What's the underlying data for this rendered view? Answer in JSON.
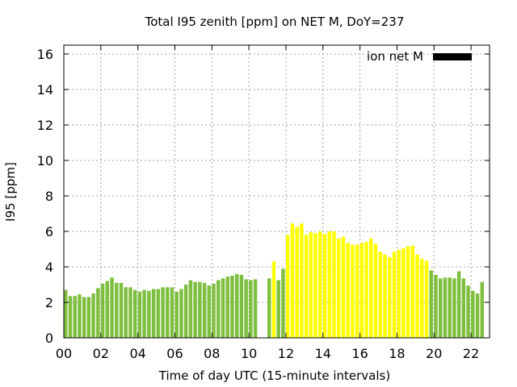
{
  "chart_data": {
    "type": "bar",
    "title": "Total I95 zenith [ppm] on NET M, DoY=237",
    "xlabel": "Time of day UTC (15-minute intervals)",
    "ylabel": "I95 [ppm]",
    "xlim": [
      0,
      23
    ],
    "ylim": [
      0,
      16.5
    ],
    "x_ticks": [
      "00",
      "02",
      "04",
      "06",
      "08",
      "10",
      "12",
      "14",
      "16",
      "18",
      "20",
      "22"
    ],
    "x_tick_values": [
      0,
      2,
      4,
      6,
      8,
      10,
      12,
      14,
      16,
      18,
      20,
      22
    ],
    "y_ticks": [
      "0",
      "2",
      "4",
      "6",
      "8",
      "10",
      "12",
      "14",
      "16"
    ],
    "y_tick_values": [
      0,
      2,
      4,
      6,
      8,
      10,
      12,
      14,
      16
    ],
    "grid": true,
    "legend": {
      "position": "top-right",
      "label": "ion net M",
      "color": "#000000"
    },
    "colors": {
      "green": "#7fbf3f",
      "yellow": "#ffff00"
    },
    "bars": [
      {
        "x": 0.0,
        "value": 2.7,
        "color": "green"
      },
      {
        "x": 0.25,
        "value": 2.35,
        "color": "green"
      },
      {
        "x": 0.5,
        "value": 2.35,
        "color": "green"
      },
      {
        "x": 0.75,
        "value": 2.45,
        "color": "green"
      },
      {
        "x": 1.0,
        "value": 2.3,
        "color": "green"
      },
      {
        "x": 1.25,
        "value": 2.3,
        "color": "green"
      },
      {
        "x": 1.5,
        "value": 2.5,
        "color": "green"
      },
      {
        "x": 1.75,
        "value": 2.8,
        "color": "green"
      },
      {
        "x": 2.0,
        "value": 3.05,
        "color": "green"
      },
      {
        "x": 2.25,
        "value": 3.2,
        "color": "green"
      },
      {
        "x": 2.5,
        "value": 3.4,
        "color": "green"
      },
      {
        "x": 2.75,
        "value": 3.1,
        "color": "green"
      },
      {
        "x": 3.0,
        "value": 3.1,
        "color": "green"
      },
      {
        "x": 3.25,
        "value": 2.85,
        "color": "green"
      },
      {
        "x": 3.5,
        "value": 2.85,
        "color": "green"
      },
      {
        "x": 3.75,
        "value": 2.7,
        "color": "green"
      },
      {
        "x": 4.0,
        "value": 2.6,
        "color": "green"
      },
      {
        "x": 4.25,
        "value": 2.7,
        "color": "green"
      },
      {
        "x": 4.5,
        "value": 2.65,
        "color": "green"
      },
      {
        "x": 4.75,
        "value": 2.75,
        "color": "green"
      },
      {
        "x": 5.0,
        "value": 2.75,
        "color": "green"
      },
      {
        "x": 5.25,
        "value": 2.85,
        "color": "green"
      },
      {
        "x": 5.5,
        "value": 2.85,
        "color": "green"
      },
      {
        "x": 5.75,
        "value": 2.85,
        "color": "green"
      },
      {
        "x": 6.0,
        "value": 2.6,
        "color": "green"
      },
      {
        "x": 6.25,
        "value": 2.75,
        "color": "green"
      },
      {
        "x": 6.5,
        "value": 3.0,
        "color": "green"
      },
      {
        "x": 6.75,
        "value": 3.25,
        "color": "green"
      },
      {
        "x": 7.0,
        "value": 3.15,
        "color": "green"
      },
      {
        "x": 7.25,
        "value": 3.15,
        "color": "green"
      },
      {
        "x": 7.5,
        "value": 3.1,
        "color": "green"
      },
      {
        "x": 7.75,
        "value": 2.95,
        "color": "green"
      },
      {
        "x": 8.0,
        "value": 3.05,
        "color": "green"
      },
      {
        "x": 8.25,
        "value": 3.25,
        "color": "green"
      },
      {
        "x": 8.5,
        "value": 3.35,
        "color": "green"
      },
      {
        "x": 8.75,
        "value": 3.45,
        "color": "green"
      },
      {
        "x": 9.0,
        "value": 3.5,
        "color": "green"
      },
      {
        "x": 9.25,
        "value": 3.6,
        "color": "green"
      },
      {
        "x": 9.5,
        "value": 3.55,
        "color": "green"
      },
      {
        "x": 9.75,
        "value": 3.3,
        "color": "green"
      },
      {
        "x": 10.0,
        "value": 3.25,
        "color": "green"
      },
      {
        "x": 10.25,
        "value": 3.3,
        "color": "green"
      },
      {
        "x": 11.0,
        "value": 3.35,
        "color": "green"
      },
      {
        "x": 11.25,
        "value": 4.3,
        "color": "yellow"
      },
      {
        "x": 11.5,
        "value": 3.25,
        "color": "green"
      },
      {
        "x": 11.75,
        "value": 3.9,
        "color": "green"
      },
      {
        "x": 12.0,
        "value": 5.8,
        "color": "yellow"
      },
      {
        "x": 12.25,
        "value": 6.45,
        "color": "yellow"
      },
      {
        "x": 12.5,
        "value": 6.25,
        "color": "yellow"
      },
      {
        "x": 12.75,
        "value": 6.45,
        "color": "yellow"
      },
      {
        "x": 13.0,
        "value": 5.8,
        "color": "yellow"
      },
      {
        "x": 13.25,
        "value": 5.95,
        "color": "yellow"
      },
      {
        "x": 13.5,
        "value": 5.9,
        "color": "yellow"
      },
      {
        "x": 13.75,
        "value": 6.0,
        "color": "yellow"
      },
      {
        "x": 14.0,
        "value": 5.85,
        "color": "yellow"
      },
      {
        "x": 14.25,
        "value": 6.0,
        "color": "yellow"
      },
      {
        "x": 14.5,
        "value": 6.0,
        "color": "yellow"
      },
      {
        "x": 14.75,
        "value": 5.6,
        "color": "yellow"
      },
      {
        "x": 15.0,
        "value": 5.7,
        "color": "yellow"
      },
      {
        "x": 15.25,
        "value": 5.35,
        "color": "yellow"
      },
      {
        "x": 15.5,
        "value": 5.25,
        "color": "yellow"
      },
      {
        "x": 15.75,
        "value": 5.25,
        "color": "yellow"
      },
      {
        "x": 16.0,
        "value": 5.35,
        "color": "yellow"
      },
      {
        "x": 16.25,
        "value": 5.4,
        "color": "yellow"
      },
      {
        "x": 16.5,
        "value": 5.6,
        "color": "yellow"
      },
      {
        "x": 16.75,
        "value": 5.3,
        "color": "yellow"
      },
      {
        "x": 17.0,
        "value": 4.85,
        "color": "yellow"
      },
      {
        "x": 17.25,
        "value": 4.7,
        "color": "yellow"
      },
      {
        "x": 17.5,
        "value": 4.55,
        "color": "yellow"
      },
      {
        "x": 17.75,
        "value": 4.85,
        "color": "yellow"
      },
      {
        "x": 18.0,
        "value": 4.95,
        "color": "yellow"
      },
      {
        "x": 18.25,
        "value": 5.05,
        "color": "yellow"
      },
      {
        "x": 18.5,
        "value": 5.15,
        "color": "yellow"
      },
      {
        "x": 18.75,
        "value": 5.2,
        "color": "yellow"
      },
      {
        "x": 19.0,
        "value": 4.7,
        "color": "yellow"
      },
      {
        "x": 19.25,
        "value": 4.45,
        "color": "yellow"
      },
      {
        "x": 19.5,
        "value": 4.35,
        "color": "yellow"
      },
      {
        "x": 19.75,
        "value": 3.8,
        "color": "green"
      },
      {
        "x": 20.0,
        "value": 3.55,
        "color": "green"
      },
      {
        "x": 20.25,
        "value": 3.35,
        "color": "green"
      },
      {
        "x": 20.5,
        "value": 3.4,
        "color": "green"
      },
      {
        "x": 20.75,
        "value": 3.4,
        "color": "green"
      },
      {
        "x": 21.0,
        "value": 3.35,
        "color": "green"
      },
      {
        "x": 21.25,
        "value": 3.75,
        "color": "green"
      },
      {
        "x": 21.5,
        "value": 3.35,
        "color": "green"
      },
      {
        "x": 21.75,
        "value": 2.95,
        "color": "green"
      },
      {
        "x": 22.0,
        "value": 2.65,
        "color": "green"
      },
      {
        "x": 22.25,
        "value": 2.5,
        "color": "green"
      },
      {
        "x": 22.5,
        "value": 3.15,
        "color": "green"
      }
    ]
  }
}
